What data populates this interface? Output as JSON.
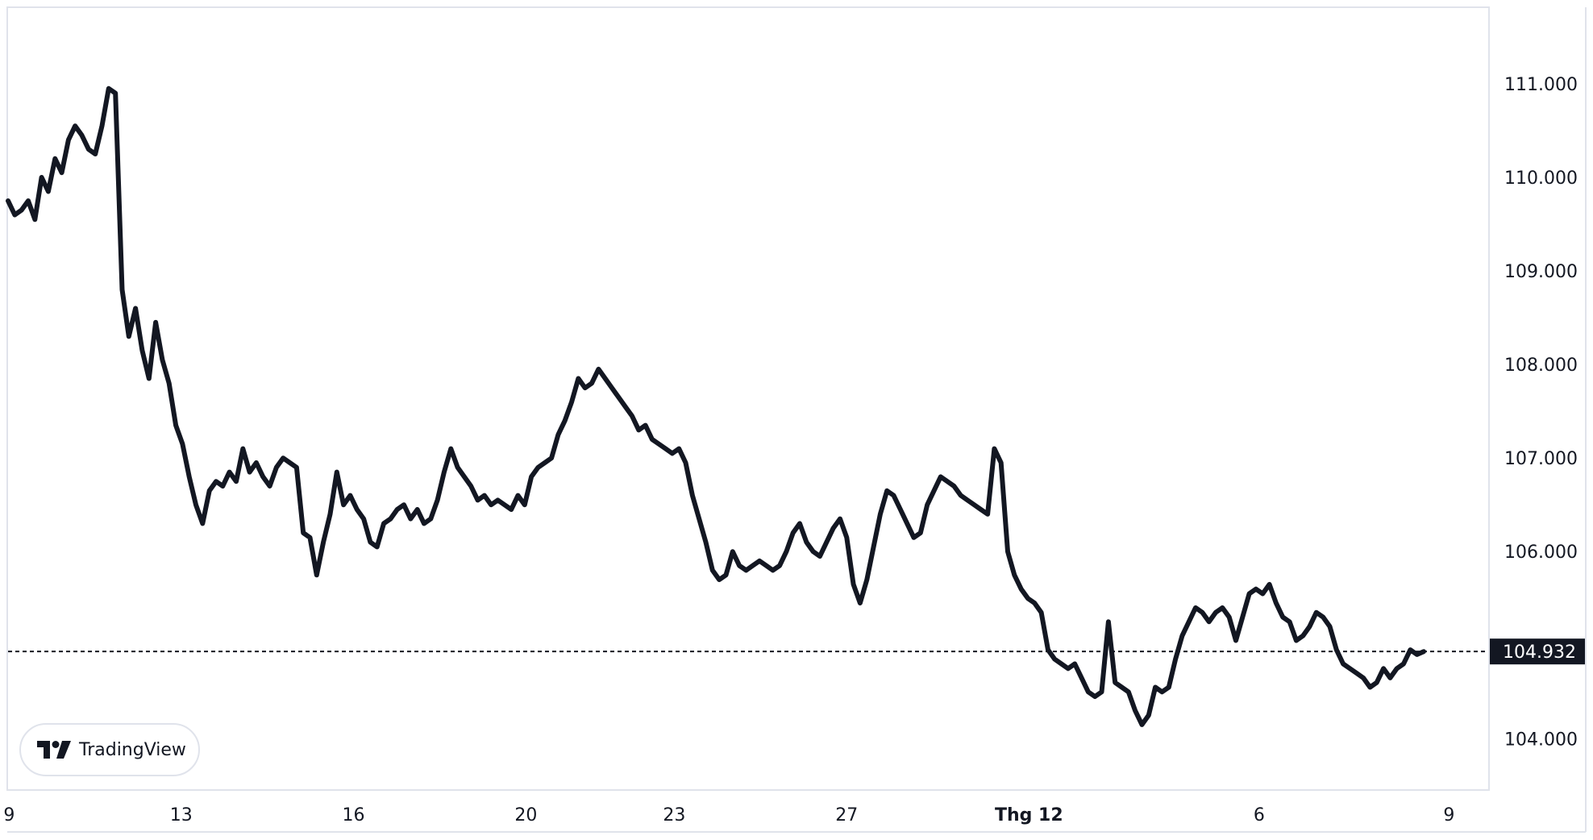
{
  "branding": {
    "name": "TradingView",
    "icon": "tradingview-logo-icon"
  },
  "colors": {
    "line": "#131722",
    "grid_border": "#e0e3eb",
    "label_bg": "#131722",
    "label_text": "#ffffff",
    "background": "#ffffff"
  },
  "chart_data": {
    "type": "line",
    "title": "",
    "xlabel": "",
    "ylabel": "",
    "ylim": [
      103.46,
      111.81
    ],
    "y_ticks": [
      "111.000",
      "110.000",
      "109.000",
      "108.000",
      "107.000",
      "106.000",
      "104.000"
    ],
    "y_tick_values": [
      111,
      110,
      109,
      108,
      107,
      106,
      104
    ],
    "x_ticks": [
      {
        "label": "9",
        "index": 0.3,
        "month": false
      },
      {
        "label": "13",
        "index": 45.5,
        "month": false
      },
      {
        "label": "16",
        "index": 90.8,
        "month": false
      },
      {
        "label": "20",
        "index": 136.1,
        "month": false
      },
      {
        "label": "23",
        "index": 175.1,
        "month": false
      },
      {
        "label": "27",
        "index": 220.4,
        "month": false
      },
      {
        "label": "Thg 12",
        "index": 268.3,
        "month": true
      },
      {
        "label": "6",
        "index": 328.8,
        "month": false
      },
      {
        "label": "9",
        "index": 378.7,
        "month": false
      }
    ],
    "x_range": [
      0,
      389
    ],
    "last_value": 104.932,
    "last_value_label": "104.932",
    "grid": false,
    "legend": "none",
    "series": [
      {
        "values": [
          109.75,
          109.6,
          109.65,
          109.75,
          109.55,
          110.0,
          109.85,
          110.2,
          110.05,
          110.4,
          110.55,
          110.45,
          110.3,
          110.25,
          110.55,
          110.95,
          110.9,
          108.8,
          108.3,
          108.6,
          108.15,
          107.85,
          108.45,
          108.05,
          107.8,
          107.35,
          107.15,
          106.8,
          106.5,
          106.3,
          106.65,
          106.75,
          106.7,
          106.85,
          106.75,
          107.1,
          106.85,
          106.95,
          106.8,
          106.7,
          106.9,
          107.0,
          106.95,
          106.9,
          106.2,
          106.15,
          105.75,
          106.1,
          106.4,
          106.85,
          106.5,
          106.6,
          106.45,
          106.35,
          106.1,
          106.05,
          106.3,
          106.35,
          106.45,
          106.5,
          106.35,
          106.45,
          106.3,
          106.35,
          106.55,
          106.85,
          107.1,
          106.9,
          106.8,
          106.7,
          106.55,
          106.6,
          106.5,
          106.55,
          106.5,
          106.45,
          106.6,
          106.5,
          106.8,
          106.9,
          106.95,
          107.0,
          107.25,
          107.4,
          107.6,
          107.85,
          107.75,
          107.8,
          107.95,
          107.85,
          107.75,
          107.65,
          107.55,
          107.45,
          107.3,
          107.35,
          107.2,
          107.15,
          107.1,
          107.05,
          107.1,
          106.95,
          106.6,
          106.35,
          106.1,
          105.8,
          105.7,
          105.75,
          106.0,
          105.85,
          105.8,
          105.85,
          105.9,
          105.85,
          105.8,
          105.85,
          106.0,
          106.2,
          106.3,
          106.1,
          106.0,
          105.95,
          106.1,
          106.25,
          106.35,
          106.15,
          105.65,
          105.45,
          105.7,
          106.05,
          106.4,
          106.65,
          106.6,
          106.45,
          106.3,
          106.15,
          106.2,
          106.5,
          106.65,
          106.8,
          106.75,
          106.7,
          106.6,
          106.55,
          106.5,
          106.45,
          106.4,
          107.1,
          106.95,
          106.0,
          105.75,
          105.6,
          105.5,
          105.45,
          105.35,
          104.95,
          104.85,
          104.8,
          104.75,
          104.8,
          104.65,
          104.5,
          104.45,
          104.5,
          105.25,
          104.6,
          104.55,
          104.5,
          104.3,
          104.15,
          104.25,
          104.55,
          104.5,
          104.55,
          104.85,
          105.1,
          105.25,
          105.4,
          105.35,
          105.25,
          105.35,
          105.4,
          105.3,
          105.05,
          105.3,
          105.55,
          105.6,
          105.55,
          105.65,
          105.45,
          105.3,
          105.25,
          105.05,
          105.1,
          105.2,
          105.35,
          105.3,
          105.2,
          104.95,
          104.8,
          104.75,
          104.7,
          104.65,
          104.55,
          104.6,
          104.75,
          104.65,
          104.75,
          104.8,
          104.95,
          104.9,
          104.932
        ]
      }
    ]
  }
}
